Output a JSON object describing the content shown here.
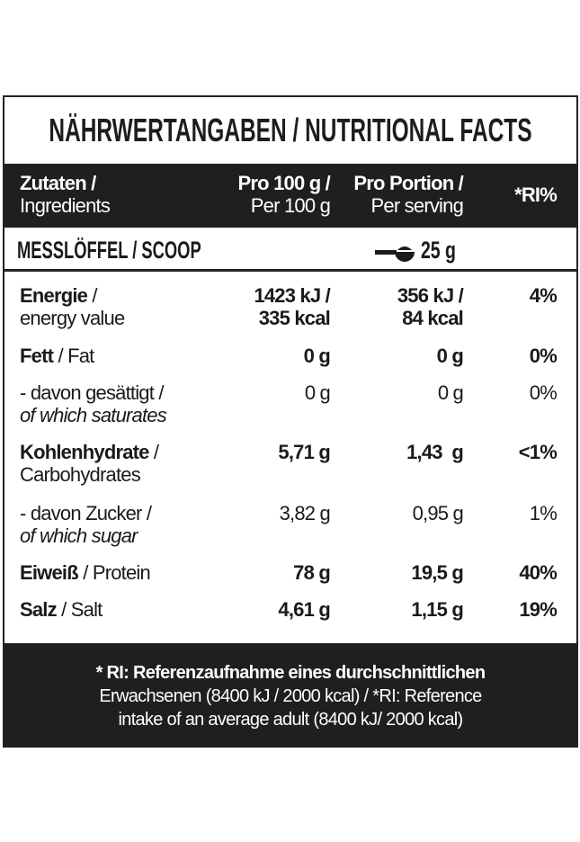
{
  "title": "NÄHRWERTANGABEN / NUTRITIONAL FACTS",
  "header": {
    "col1_de": "Zutaten /",
    "col1_en": "Ingredients",
    "col2_de": "Pro 100 g /",
    "col2_en": "Per 100 g",
    "col3_de": "Pro Portion /",
    "col3_en": "Per serving",
    "col4": "*RI%"
  },
  "scoop": {
    "label": "MESSLÖFFEL / SCOOP",
    "icon": "scoop-icon",
    "value": "25 g"
  },
  "rows": [
    {
      "de": "Energie",
      "sep": " /",
      "en": "energy value",
      "v1a": "1423 kJ /",
      "v1b": "335 kcal",
      "v2a": "356 kJ /",
      "v2b": "84 kcal",
      "ri": "4%"
    },
    {
      "de": "Fett",
      "sep": " / ",
      "en": "Fat",
      "v1": "0 g",
      "v2": "0 g",
      "ri": "0%"
    },
    {
      "de": "- davon gesättigt /",
      "en": "of which saturates",
      "v1": "0 g",
      "v2": "0 g",
      "ri": "0%"
    },
    {
      "de": "Kohlenhydrate",
      "sep": " /",
      "en": "Carbohydrates",
      "v1": "5,71 g",
      "v2": "1,43  g",
      "ri": "<1%"
    },
    {
      "de": "- davon Zucker /",
      "en": "of which sugar",
      "v1": "3,82 g",
      "v2": "0,95 g",
      "ri": "1%"
    },
    {
      "de": "Eiweiß",
      "sep": " / ",
      "en": "Protein",
      "v1": "78 g",
      "v2": "19,5 g",
      "ri": "40%"
    },
    {
      "de": "Salz",
      "sep": " / ",
      "en": "Salt",
      "v1": "4,61 g",
      "v2": "1,15 g",
      "ri": "19%"
    }
  ],
  "footer": {
    "line1": "* RI: Referenzaufnahme eines durchschnittlichen",
    "line2": "Erwachsenen (8400 kJ / 2000 kcal) / *RI: Reference",
    "line3": "intake of an average adult (8400 kJ/ 2000 kcal)"
  }
}
